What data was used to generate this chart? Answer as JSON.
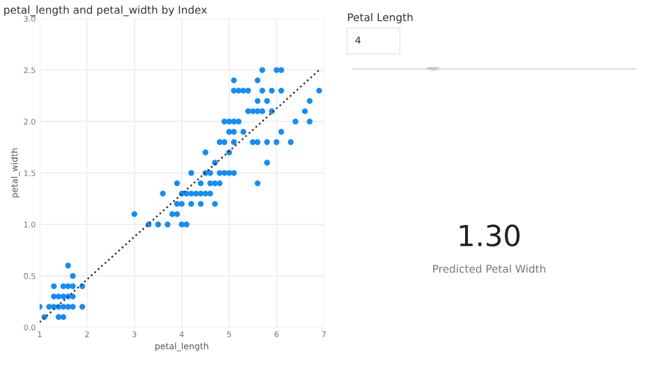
{
  "chart_data": [
    {
      "type": "scatter",
      "title": "petal_length and petal_width by Index",
      "xlabel": "petal_length",
      "ylabel": "petal_width",
      "xlim": [
        1,
        7
      ],
      "ylim": [
        0,
        3
      ],
      "xticks": [
        1,
        2,
        3,
        4,
        5,
        6,
        7
      ],
      "yticks": [
        {
          "value": 0,
          "label": "0.0"
        },
        0.5,
        {
          "value": 1,
          "label": "1.0"
        },
        1.5,
        {
          "value": 2,
          "label": "2.0"
        },
        2.5,
        {
          "value": 3,
          "label": "3.0"
        }
      ],
      "grid": true,
      "marker": "circle",
      "series": [
        {
          "type": "scatter",
          "color": "#118dff",
          "x": [
            1.0,
            1.1,
            1.2,
            1.3,
            1.3,
            1.3,
            1.4,
            1.4,
            1.4,
            1.5,
            1.5,
            1.5,
            1.5,
            1.6,
            1.6,
            1.6,
            1.6,
            1.7,
            1.7,
            1.7,
            1.7,
            1.9,
            1.9,
            3.0,
            3.8,
            3.9,
            3.3,
            3.5,
            3.7,
            4.0,
            4.1,
            3.9,
            4.0,
            4.2,
            4.4,
            4.7,
            3.6,
            4.0,
            4.1,
            4.2,
            4.3,
            4.4,
            4.5,
            4.6,
            3.9,
            4.4,
            4.6,
            4.7,
            4.8,
            5.6,
            4.2,
            4.5,
            4.6,
            4.8,
            4.9,
            5.0,
            5.1,
            4.7,
            5.8,
            4.5,
            5.0,
            4.8,
            4.9,
            5.1,
            5.5,
            5.6,
            5.8,
            6.0,
            6.3,
            5.0,
            5.1,
            5.3,
            6.1,
            4.9,
            5.0,
            5.1,
            5.2,
            6.4,
            6.7,
            5.4,
            5.5,
            5.6,
            5.7,
            5.9,
            6.6,
            5.6,
            5.8,
            6.7,
            5.1,
            5.2,
            5.3,
            5.4,
            5.7,
            5.9,
            6.1,
            6.9,
            5.1,
            5.6,
            5.7,
            6.0,
            6.1
          ],
          "values": [
            0.2,
            0.1,
            0.2,
            0.2,
            0.3,
            0.4,
            0.2,
            0.3,
            0.1,
            0.2,
            0.1,
            0.4,
            0.3,
            0.6,
            0.4,
            0.2,
            0.3,
            0.3,
            0.5,
            0.4,
            0.2,
            0.4,
            0.2,
            1.1,
            1.1,
            1.1,
            1.0,
            1.0,
            1.0,
            1.0,
            1.0,
            1.2,
            1.2,
            1.2,
            1.2,
            1.2,
            1.3,
            1.3,
            1.3,
            1.3,
            1.3,
            1.3,
            1.3,
            1.3,
            1.4,
            1.4,
            1.4,
            1.4,
            1.4,
            1.4,
            1.5,
            1.5,
            1.5,
            1.5,
            1.5,
            1.5,
            1.5,
            1.6,
            1.6,
            1.7,
            1.7,
            1.8,
            1.8,
            1.8,
            1.8,
            1.8,
            1.8,
            1.8,
            1.8,
            1.9,
            1.9,
            1.9,
            1.9,
            2.0,
            2.0,
            2.0,
            2.0,
            2.0,
            2.0,
            2.1,
            2.1,
            2.1,
            2.1,
            2.1,
            2.1,
            2.2,
            2.2,
            2.2,
            2.3,
            2.3,
            2.3,
            2.3,
            2.3,
            2.3,
            2.3,
            2.3,
            2.4,
            2.4,
            2.5,
            2.5,
            2.5
          ]
        },
        {
          "type": "line",
          "color": "#333333",
          "line_style": "dotted",
          "marker": "none",
          "x": [
            1.0,
            6.9
          ],
          "values": [
            0.05,
            2.5
          ]
        }
      ]
    },
    {
      "type": "other",
      "title": "Petal Length",
      "annotations": [
        "4",
        "1.30",
        "Predicted Petal Width"
      ]
    }
  ]
}
